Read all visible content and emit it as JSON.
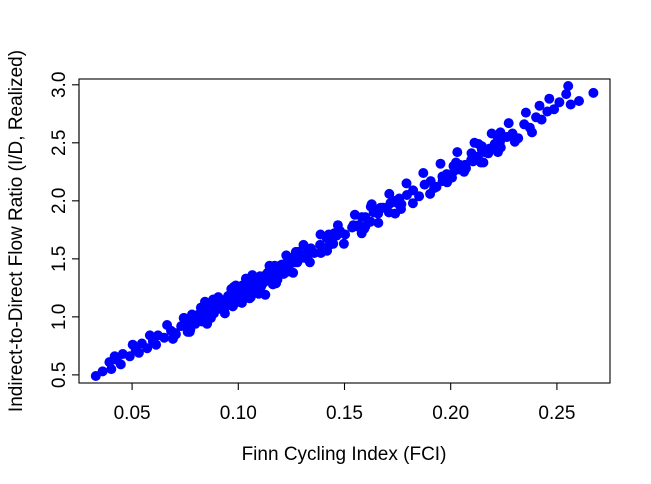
{
  "chart_data": {
    "type": "scatter",
    "xlabel": "Finn Cycling Index (FCI)",
    "ylabel": "Indirect-to-Direct Flow Ratio (I/D, Realized)",
    "xlim": [
      0.025,
      0.275
    ],
    "ylim": [
      0.43,
      3.05
    ],
    "x_ticks": [
      0.05,
      0.1,
      0.15,
      0.2,
      0.25
    ],
    "x_tick_labels": [
      "0.05",
      "0.10",
      "0.15",
      "0.20",
      "0.25"
    ],
    "y_ticks": [
      0.5,
      1.0,
      1.5,
      2.0,
      2.5,
      3.0
    ],
    "y_tick_labels": [
      "0.5",
      "1.0",
      "1.5",
      "2.0",
      "2.5",
      "3.0"
    ],
    "grid": false,
    "legend": "none",
    "point_color": "#0000FF",
    "points_note": "dense cloud along y ≈ 10.8x + 0.12 (x 0.032–0.267); points below are a representative sample",
    "points": [
      [
        0.0329,
        0.49
      ],
      [
        0.0361,
        0.53
      ],
      [
        0.2672,
        2.93
      ],
      [
        0.2553,
        2.99
      ],
      [
        0.2464,
        2.88
      ],
      [
        0.2565,
        2.83
      ],
      [
        0.2604,
        2.86
      ],
      [
        0.2487,
        2.79
      ],
      [
        0.2544,
        2.92
      ],
      [
        0.1312,
        1.53
      ],
      [
        0.1358,
        1.55
      ],
      [
        0.0974,
        1.09
      ],
      [
        0.0762,
        0.87
      ],
      [
        0.2006,
        2.2
      ],
      [
        0.1227,
        1.39
      ],
      [
        0.2105,
        2.34
      ],
      [
        0.1127,
        1.19
      ],
      [
        0.1716,
        1.98
      ],
      [
        0.1766,
        1.93
      ],
      [
        0.2177,
        2.41
      ],
      [
        0.0985,
        1.19
      ],
      [
        0.1233,
        1.39
      ],
      [
        0.1431,
        1.66
      ],
      [
        0.1593,
        1.76
      ],
      [
        0.1658,
        1.89
      ],
      [
        0.1751,
        1.98
      ],
      [
        0.0798,
        0.96
      ],
      [
        0.1962,
        2.17
      ],
      [
        0.1316,
        1.51
      ],
      [
        0.1463,
        1.7
      ],
      [
        0.0798,
        0.94
      ],
      [
        0.2151,
        2.45
      ],
      [
        0.1024,
        1.24
      ],
      [
        0.0885,
        1.03
      ],
      [
        0.1598,
        1.78
      ],
      [
        0.0774,
        0.89
      ],
      [
        0.1981,
        2.23
      ],
      [
        0.1163,
        1.28
      ],
      [
        0.0706,
        0.85
      ],
      [
        0.0812,
        0.99
      ],
      [
        0.1922,
        2.11
      ],
      [
        0.0758,
        0.95
      ],
      [
        0.0791,
        0.99
      ],
      [
        0.167,
        1.94
      ],
      [
        0.0874,
        1.03
      ],
      [
        0.0871,
        0.99
      ],
      [
        0.2251,
        2.55
      ],
      [
        0.1758,
        2.02
      ],
      [
        0.2042,
        2.27
      ],
      [
        0.1278,
        1.47
      ],
      [
        0.0862,
        1.09
      ],
      [
        0.1624,
        1.95
      ],
      [
        0.1053,
        1.16
      ],
      [
        0.2147,
        2.47
      ],
      [
        0.0749,
        0.94
      ],
      [
        0.2131,
        2.49
      ],
      [
        0.2159,
        2.42
      ],
      [
        0.1389,
        1.55
      ],
      [
        0.1264,
        1.52
      ],
      [
        0.2025,
        2.33
      ],
      [
        0.0743,
        0.99
      ],
      [
        0.2222,
        2.52
      ],
      [
        0.0775,
        0.95
      ],
      [
        0.0934,
        1.07
      ],
      [
        0.1099,
        1.34
      ],
      [
        0.1326,
        1.56
      ],
      [
        0.1082,
        1.3
      ],
      [
        0.1452,
        1.72
      ],
      [
        0.1011,
        1.2
      ],
      [
        0.1021,
        1.2
      ],
      [
        0.143,
        1.62
      ],
      [
        0.2234,
        2.59
      ],
      [
        0.1637,
        1.9
      ],
      [
        0.1117,
        1.34
      ],
      [
        0.1582,
        1.86
      ],
      [
        0.1195,
        1.41
      ],
      [
        0.1298,
        1.51
      ],
      [
        0.1121,
        1.34
      ],
      [
        0.0898,
        1.1
      ],
      [
        0.1061,
        1.26
      ],
      [
        0.2098,
        2.41
      ],
      [
        0.1149,
        1.43
      ],
      [
        0.0946,
        1.12
      ],
      [
        0.1097,
        1.31
      ],
      [
        0.1287,
        1.51
      ],
      [
        0.1214,
        1.37
      ],
      [
        0.1153,
        1.38
      ],
      [
        0.0965,
        1.12
      ],
      [
        0.1264,
        1.47
      ],
      [
        0.1151,
        1.34
      ],
      [
        0.0904,
        1.09
      ],
      [
        0.093,
        1.12
      ],
      [
        0.0987,
        1.12
      ],
      [
        0.1036,
        1.33
      ],
      [
        0.2013,
        2.3
      ],
      [
        0.0979,
        1.11
      ],
      [
        0.0934,
        1.07
      ],
      [
        0.1326,
        1.5
      ],
      [
        0.0952,
        1.18
      ],
      [
        0.1102,
        1.34
      ],
      [
        0.1024,
        1.21
      ],
      [
        0.2219,
        2.56
      ],
      [
        0.1542,
        1.79
      ],
      [
        0.0887,
        1.08
      ],
      [
        0.1023,
        1.24
      ],
      [
        0.1043,
        1.21
      ],
      [
        0.0843,
        1.13
      ],
      [
        0.0813,
        1.02
      ],
      [
        0.2113,
        2.38
      ],
      [
        0.2232,
        2.51
      ],
      [
        0.1426,
        1.71
      ],
      [
        0.0909,
        1.07
      ],
      [
        0.1155,
        1.36
      ],
      [
        0.0979,
        1.14
      ],
      [
        0.1262,
        1.47
      ],
      [
        0.0974,
        1.21
      ],
      [
        0.1102,
        1.34
      ],
      [
        0.1038,
        1.21
      ],
      [
        0.0836,
        1.02
      ],
      [
        0.1182,
        1.41
      ],
      [
        0.1102,
        1.26
      ],
      [
        0.1282,
        1.56
      ],
      [
        0.156,
        1.78
      ],
      [
        0.1264,
        1.48
      ],
      [
        0.1281,
        1.52
      ],
      [
        0.1212,
        1.4
      ],
      [
        0.2147,
        2.44
      ],
      [
        0.1298,
        1.51
      ],
      [
        0.1059,
        1.17
      ],
      [
        0.0796,
        0.98
      ],
      [
        0.1271,
        1.56
      ],
      [
        0.1089,
        1.28
      ],
      [
        0.0919,
        1.07
      ],
      [
        0.1021,
        1.26
      ],
      [
        0.1147,
        1.34
      ],
      [
        0.1187,
        1.38
      ],
      [
        0.0906,
        1.09
      ],
      [
        0.0882,
        1.15
      ],
      [
        0.0981,
        1.16
      ],
      [
        0.1136,
        1.34
      ],
      [
        0.0941,
        1.15
      ],
      [
        0.0839,
        1.07
      ],
      [
        0.1036,
        1.29
      ],
      [
        0.1036,
        1.27
      ],
      [
        0.1037,
        1.22
      ],
      [
        0.1138,
        1.33
      ],
      [
        0.0967,
        1.24
      ],
      [
        0.096,
        1.13
      ],
      [
        0.0864,
        1.09
      ],
      [
        0.1103,
        1.31
      ],
      [
        0.0999,
        1.2
      ],
      [
        0.0852,
        1.04
      ],
      [
        0.1094,
        1.28
      ],
      [
        0.1075,
        1.31
      ],
      [
        0.2068,
        2.31
      ],
      [
        0.1045,
        1.31
      ],
      [
        0.0895,
        1.1
      ],
      [
        0.0782,
        1.02
      ],
      [
        0.1171,
        1.36
      ],
      [
        0.0992,
        1.16
      ],
      [
        0.1242,
        1.49
      ],
      [
        0.0954,
        1.15
      ],
      [
        0.1099,
        1.33
      ],
      [
        0.1092,
        1.26
      ],
      [
        0.0983,
        1.2
      ],
      [
        0.1106,
        1.29
      ],
      [
        0.1245,
        1.46
      ],
      [
        0.0962,
        1.13
      ],
      [
        0.1044,
        1.21
      ],
      [
        0.1237,
        1.44
      ],
      [
        0.1102,
        1.35
      ],
      [
        0.1081,
        1.3
      ],
      [
        0.1119,
        1.33
      ],
      [
        0.0857,
        1.0
      ],
      [
        0.1205,
        1.45
      ],
      [
        0.1146,
        1.39
      ],
      [
        0.0984,
        1.18
      ],
      [
        0.0862,
        1.0
      ],
      [
        0.1011,
        1.24
      ],
      [
        0.0995,
        1.18
      ],
      [
        0.1217,
        1.39
      ],
      [
        0.1126,
        1.31
      ],
      [
        0.098,
        1.26
      ],
      [
        0.1028,
        1.27
      ],
      [
        0.0853,
        0.99
      ],
      [
        0.1061,
        1.2
      ],
      [
        0.1227,
        1.45
      ],
      [
        0.1183,
        1.39
      ],
      [
        0.1223,
        1.46
      ],
      [
        0.1053,
        1.28
      ],
      [
        0.0862,
        1.09
      ],
      [
        0.118,
        1.41
      ],
      [
        0.1204,
        1.37
      ],
      [
        0.0976,
        1.19
      ],
      [
        0.0856,
        1.04
      ],
      [
        0.1193,
        1.42
      ],
      [
        0.1079,
        1.25
      ],
      [
        0.1133,
        1.33
      ],
      [
        0.0925,
        1.09
      ],
      [
        0.1181,
        1.36
      ],
      [
        0.0989,
        1.22
      ],
      [
        0.1035,
        1.24
      ],
      [
        0.1149,
        1.32
      ],
      [
        0.1051,
        1.23
      ],
      [
        0.1184,
        1.32
      ],
      [
        0.1102,
        1.3
      ],
      [
        0.1171,
        1.44
      ],
      [
        0.1138,
        1.38
      ],
      [
        0.1184,
        1.35
      ],
      [
        0.1196,
        1.44
      ],
      [
        0.0829,
        0.96
      ],
      [
        0.0919,
        1.12
      ],
      [
        0.1148,
        1.39
      ],
      [
        0.1066,
        1.29
      ],
      [
        0.1163,
        1.31
      ],
      [
        0.1085,
        1.3
      ],
      [
        0.1058,
        1.26
      ],
      [
        0.0966,
        1.16
      ],
      [
        0.1015,
        1.22
      ],
      [
        0.1209,
        1.44
      ],
      [
        0.1174,
        1.32
      ],
      [
        0.1132,
        1.36
      ],
      [
        0.1152,
        1.33
      ],
      [
        0.1079,
        1.3
      ],
      [
        0.1057,
        1.24
      ],
      [
        0.1071,
        1.3
      ],
      [
        0.1123,
        1.34
      ],
      [
        0.1165,
        1.36
      ],
      [
        0.1019,
        1.27
      ],
      [
        0.1183,
        1.35
      ],
      [
        0.1081,
        1.26
      ],
      [
        0.1133,
        1.31
      ],
      [
        0.0996,
        1.16
      ],
      [
        0.1082,
        1.33
      ],
      [
        0.0968,
        1.14
      ],
      [
        0.1125,
        1.34
      ],
      [
        0.1054,
        1.28
      ],
      [
        0.1076,
        1.22
      ],
      [
        0.0986,
        1.15
      ],
      [
        0.1081,
        1.31
      ],
      [
        0.1025,
        1.17
      ],
      [
        0.1134,
        1.32
      ],
      [
        0.1087,
        1.3
      ],
      [
        0.1094,
        1.34
      ],
      [
        0.1105,
        1.31
      ],
      [
        0.1129,
        1.36
      ],
      [
        0.1116,
        1.31
      ],
      [
        0.0976,
        1.17
      ],
      [
        0.1145,
        1.37
      ],
      [
        0.1089,
        1.24
      ],
      [
        0.1062,
        1.3
      ],
      [
        0.1171,
        1.37
      ],
      [
        0.1072,
        1.26
      ],
      [
        0.1051,
        1.26
      ],
      [
        0.1045,
        1.28
      ],
      [
        0.1112,
        1.28
      ],
      [
        0.1147,
        1.39
      ],
      [
        0.1061,
        1.22
      ],
      [
        0.1069,
        1.26
      ],
      [
        0.1109,
        1.33
      ],
      [
        0.1117,
        1.32
      ],
      [
        0.1022,
        1.23
      ],
      [
        0.1132,
        1.31
      ],
      [
        0.1006,
        1.2
      ],
      [
        0.1125,
        1.33
      ],
      [
        0.1105,
        1.32
      ],
      [
        0.1058,
        1.27
      ],
      [
        0.1091,
        1.31
      ],
      [
        0.1119,
        1.32
      ],
      [
        0.1107,
        1.26
      ],
      [
        0.1057,
        1.26
      ],
      [
        0.1062,
        1.23
      ],
      [
        0.1109,
        1.29
      ],
      [
        0.1086,
        1.29
      ],
      [
        0.1082,
        1.28
      ],
      [
        0.1096,
        1.31
      ],
      [
        0.1069,
        1.25
      ],
      [
        0.1078,
        1.29
      ],
      [
        0.1106,
        1.32
      ],
      [
        0.1088,
        1.28
      ],
      [
        0.1075,
        1.31
      ],
      [
        0.1072,
        1.26
      ],
      [
        0.1091,
        1.27
      ],
      [
        0.1092,
        1.29
      ],
      [
        0.1087,
        1.29
      ],
      [
        0.0393,
        0.61
      ],
      [
        0.0428,
        0.63
      ],
      [
        0.0456,
        0.68
      ],
      [
        0.0489,
        0.66
      ],
      [
        0.0517,
        0.71
      ],
      [
        0.0546,
        0.77
      ],
      [
        0.0571,
        0.73
      ],
      [
        0.0598,
        0.79
      ],
      [
        0.0622,
        0.84
      ],
      [
        0.0651,
        0.82
      ],
      [
        0.0683,
        0.88
      ],
      [
        0.0704,
        0.86
      ],
      [
        0.0731,
        0.92
      ],
      [
        0.1342,
        1.59
      ],
      [
        0.1385,
        1.62
      ],
      [
        0.1416,
        1.68
      ],
      [
        0.1447,
        1.63
      ],
      [
        0.1479,
        1.74
      ],
      [
        0.1503,
        1.71
      ],
      [
        0.1536,
        1.77
      ],
      [
        0.1566,
        1.79
      ],
      [
        0.1598,
        1.86
      ],
      [
        0.1622,
        1.82
      ],
      [
        0.1655,
        1.91
      ],
      [
        0.1683,
        1.94
      ],
      [
        0.1709,
        1.9
      ],
      [
        0.1741,
        2.0
      ],
      [
        0.1768,
        1.97
      ],
      [
        0.1794,
        2.05
      ],
      [
        0.1823,
        2.09
      ],
      [
        0.1851,
        2.04
      ],
      [
        0.1877,
        2.14
      ],
      [
        0.1906,
        2.17
      ],
      [
        0.1933,
        2.12
      ],
      [
        0.1961,
        2.21
      ],
      [
        0.1988,
        2.19
      ],
      [
        0.2017,
        2.26
      ],
      [
        0.2043,
        2.31
      ],
      [
        0.2072,
        2.28
      ],
      [
        0.2096,
        2.35
      ],
      [
        0.2128,
        2.38
      ],
      [
        0.2154,
        2.33
      ],
      [
        0.2183,
        2.45
      ],
      [
        0.2207,
        2.49
      ],
      [
        0.2236,
        2.46
      ],
      [
        0.2264,
        2.55
      ],
      [
        0.2291,
        2.58
      ],
      [
        0.2318,
        2.54
      ],
      [
        0.2346,
        2.66
      ],
      [
        0.2373,
        2.63
      ],
      [
        0.2402,
        2.72
      ],
      [
        0.2428,
        2.7
      ],
      [
        0.2455,
        2.77
      ],
      [
        0.0402,
        0.55
      ],
      [
        0.0447,
        0.59
      ],
      [
        0.0532,
        0.69
      ],
      [
        0.0613,
        0.76
      ],
      [
        0.0692,
        0.81
      ],
      [
        0.0771,
        0.87
      ],
      [
        0.0853,
        0.94
      ],
      [
        0.0937,
        1.03
      ],
      [
        0.1017,
        1.12
      ],
      [
        0.1096,
        1.2
      ],
      [
        0.1178,
        1.29
      ],
      [
        0.1258,
        1.38
      ],
      [
        0.1337,
        1.47
      ],
      [
        0.1418,
        1.57
      ],
      [
        0.1497,
        1.63
      ],
      [
        0.1581,
        1.72
      ],
      [
        0.1659,
        1.81
      ],
      [
        0.1738,
        1.89
      ],
      [
        0.1822,
        1.98
      ],
      [
        0.1903,
        2.06
      ],
      [
        0.1983,
        2.16
      ],
      [
        0.2063,
        2.25
      ],
      [
        0.2142,
        2.33
      ],
      [
        0.2222,
        2.42
      ],
      [
        0.2302,
        2.51
      ],
      [
        0.2383,
        2.59
      ],
      [
        0.0418,
        0.66
      ],
      [
        0.0503,
        0.76
      ],
      [
        0.0584,
        0.84
      ],
      [
        0.0665,
        0.93
      ],
      [
        0.0745,
        0.99
      ],
      [
        0.0824,
        1.08
      ],
      [
        0.0906,
        1.17
      ],
      [
        0.0988,
        1.27
      ],
      [
        0.1066,
        1.36
      ],
      [
        0.1147,
        1.44
      ],
      [
        0.1226,
        1.53
      ],
      [
        0.1307,
        1.62
      ],
      [
        0.1387,
        1.71
      ],
      [
        0.1469,
        1.79
      ],
      [
        0.1549,
        1.88
      ],
      [
        0.1628,
        1.97
      ],
      [
        0.1711,
        2.06
      ],
      [
        0.1792,
        2.15
      ],
      [
        0.1871,
        2.24
      ],
      [
        0.1952,
        2.32
      ],
      [
        0.2031,
        2.42
      ],
      [
        0.2112,
        2.5
      ],
      [
        0.2193,
        2.58
      ],
      [
        0.2273,
        2.67
      ],
      [
        0.2354,
        2.76
      ],
      [
        0.2418,
        2.82
      ],
      [
        0.2512,
        2.85
      ]
    ]
  }
}
